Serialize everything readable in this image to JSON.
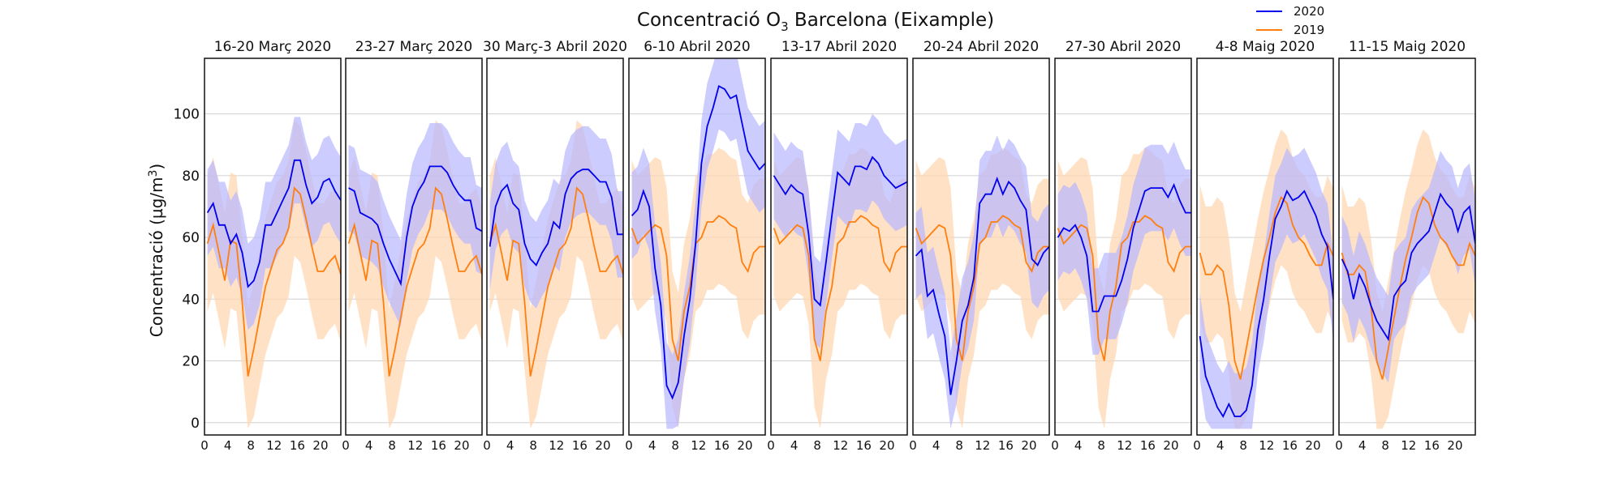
{
  "chart_data": {
    "type": "line",
    "title": "Concentració O",
    "title_sub": "3",
    "title_rest": " Barcelona (Eixample)",
    "ylabel": "Concentració (µg/m",
    "ylabel_sup": "3",
    "ylabel_end": ")",
    "ylim": [
      -4,
      118
    ],
    "yticks": [
      0,
      20,
      40,
      60,
      80,
      100
    ],
    "xlim": [
      0,
      23.5
    ],
    "xticks": [
      0,
      4,
      8,
      12,
      16,
      20
    ],
    "grid": "horizontal",
    "legend_position": "top-right",
    "series_colors": {
      "2020": "#0000ee",
      "2019": "#ff7f0e"
    },
    "band_colors": {
      "2020": "#b7b7ff",
      "2019": "#ffd7b3"
    },
    "legend": [
      {
        "name": "2020",
        "color": "#0000ee"
      },
      {
        "name": "2019",
        "color": "#ff7f0e"
      }
    ],
    "x": [
      0.5,
      1.5,
      2.5,
      3.5,
      4.5,
      5.5,
      6.5,
      7.5,
      8.5,
      9.5,
      10.5,
      11.5,
      12.5,
      13.5,
      14.5,
      15.5,
      16.5,
      17.5,
      18.5,
      19.5,
      20.5,
      21.5,
      22.5,
      23.5
    ],
    "panels": [
      {
        "title": "16-20 Març 2020",
        "series": [
          {
            "name": "2020",
            "values": [
              68,
              71,
              64,
              64,
              58,
              61,
              55,
              44,
              46,
              52,
              64,
              64,
              68,
              72,
              76,
              85,
              85,
              77,
              71,
              73,
              78,
              79,
              75,
              72
            ]
          },
          {
            "name": "2019",
            "values": [
              58,
              64,
              55,
              46,
              59,
              58,
              39,
              15,
              24,
              34,
              44,
              50,
              56,
              58,
              63,
              76,
              74,
              66,
              57,
              49,
              49,
              52,
              54,
              48
            ]
          }
        ]
      },
      {
        "title": "23-27 Març 2020",
        "series": [
          {
            "name": "2020",
            "values": [
              76,
              75,
              68,
              67,
              66,
              64,
              58,
              53,
              49,
              45,
              60,
              70,
              75,
              78,
              83,
              83,
              83,
              81,
              77,
              74,
              72,
              72,
              63,
              62
            ]
          },
          {
            "name": "2019",
            "values": [
              58,
              64,
              55,
              46,
              59,
              58,
              39,
              15,
              24,
              34,
              44,
              50,
              56,
              58,
              63,
              76,
              74,
              66,
              57,
              49,
              49,
              52,
              54,
              48
            ]
          }
        ]
      },
      {
        "title": "30 Març-3 Abril 2020",
        "series": [
          {
            "name": "2020",
            "values": [
              57,
              70,
              75,
              77,
              71,
              69,
              58,
              53,
              51,
              55,
              58,
              65,
              63,
              74,
              79,
              81,
              82,
              82,
              80,
              78,
              78,
              73,
              61,
              61
            ]
          },
          {
            "name": "2019",
            "values": [
              58,
              64,
              55,
              46,
              59,
              58,
              39,
              15,
              24,
              34,
              44,
              50,
              56,
              58,
              63,
              76,
              74,
              66,
              57,
              49,
              49,
              52,
              54,
              48
            ]
          }
        ]
      },
      {
        "title": "6-10 Abril 2020",
        "series": [
          {
            "name": "2020",
            "values": [
              67,
              69,
              75,
              70,
              50,
              38,
              12,
              8,
              13,
              28,
              40,
              58,
              84,
              96,
              102,
              109,
              108,
              105,
              106,
              97,
              88,
              85,
              82,
              84
            ]
          },
          {
            "name": "2019",
            "values": [
              63,
              58,
              60,
              62,
              64,
              63,
              54,
              27,
              20,
              36,
              44,
              58,
              60,
              65,
              65,
              67,
              66,
              64,
              63,
              52,
              49,
              55,
              57,
              57
            ]
          }
        ]
      },
      {
        "title": "13-17 Abril 2020",
        "series": [
          {
            "name": "2020",
            "values": [
              80,
              77,
              74,
              77,
              75,
              74,
              61,
              40,
              38,
              52,
              67,
              81,
              79,
              77,
              83,
              83,
              82,
              86,
              84,
              80,
              78,
              76,
              77,
              78
            ]
          },
          {
            "name": "2019",
            "values": [
              63,
              58,
              60,
              62,
              64,
              63,
              54,
              27,
              20,
              36,
              44,
              58,
              60,
              65,
              65,
              67,
              66,
              64,
              63,
              52,
              49,
              55,
              57,
              57
            ]
          }
        ]
      },
      {
        "title": "20-24 Abril 2020",
        "series": [
          {
            "name": "2020",
            "values": [
              54,
              56,
              41,
              43,
              35,
              28,
              9,
              20,
              33,
              38,
              47,
              71,
              74,
              74,
              79,
              74,
              78,
              76,
              72,
              69,
              53,
              51,
              55,
              57
            ]
          },
          {
            "name": "2019",
            "values": [
              63,
              58,
              60,
              62,
              64,
              63,
              54,
              27,
              20,
              36,
              44,
              58,
              60,
              65,
              65,
              67,
              66,
              64,
              63,
              52,
              49,
              55,
              57,
              57
            ]
          }
        ]
      },
      {
        "title": "27-30 Abril 2020",
        "series": [
          {
            "name": "2020",
            "values": [
              60,
              63,
              62,
              64,
              60,
              54,
              36,
              36,
              41,
              41,
              41,
              46,
              53,
              63,
              69,
              75,
              76,
              76,
              76,
              73,
              77,
              72,
              68,
              68
            ]
          },
          {
            "name": "2019",
            "values": [
              63,
              58,
              60,
              62,
              64,
              63,
              54,
              27,
              20,
              36,
              44,
              58,
              60,
              65,
              65,
              67,
              66,
              64,
              63,
              52,
              49,
              55,
              57,
              57
            ]
          }
        ]
      },
      {
        "title": "4-8 Maig 2020",
        "series": [
          {
            "name": "2020",
            "values": [
              28,
              15,
              10,
              5,
              2,
              6,
              2,
              2,
              4,
              12,
              30,
              40,
              54,
              66,
              70,
              75,
              72,
              73,
              75,
              71,
              67,
              61,
              57,
              40
            ]
          },
          {
            "name": "2019",
            "values": [
              55,
              48,
              48,
              51,
              49,
              38,
              20,
              14,
              24,
              34,
              44,
              53,
              60,
              68,
              73,
              71,
              64,
              60,
              58,
              54,
              51,
              51,
              58,
              54
            ]
          }
        ]
      },
      {
        "title": "11-15 Maig 2020",
        "series": [
          {
            "name": "2020",
            "values": [
              53,
              49,
              40,
              48,
              44,
              38,
              33,
              30,
              27,
              41,
              44,
              46,
              55,
              58,
              60,
              62,
              68,
              74,
              71,
              69,
              62,
              68,
              70,
              58
            ]
          },
          {
            "name": "2019",
            "values": [
              55,
              48,
              48,
              51,
              49,
              38,
              20,
              14,
              24,
              34,
              44,
              53,
              60,
              68,
              73,
              71,
              64,
              60,
              58,
              54,
              51,
              51,
              58,
              54
            ]
          }
        ]
      }
    ],
    "band_half_width": {
      "2020": 14,
      "2019": 22
    }
  }
}
